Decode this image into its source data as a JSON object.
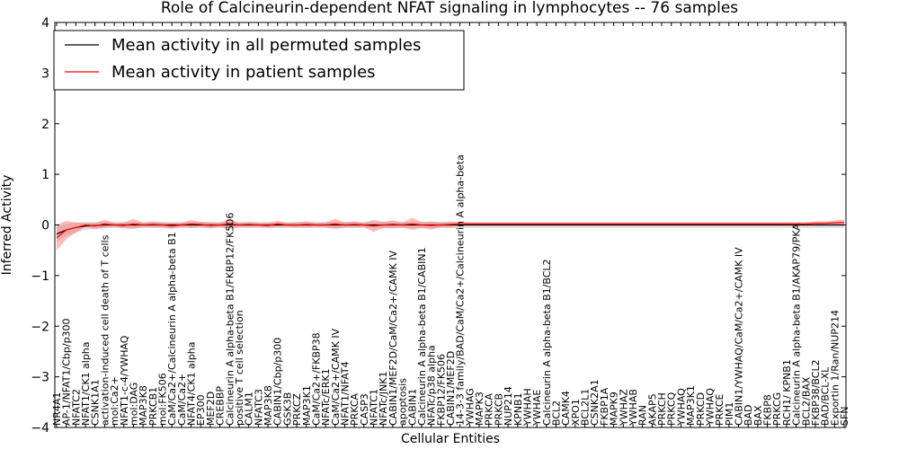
{
  "chart_data": {
    "type": "line",
    "title": "Role of Calcineurin-dependent NFAT signaling in lymphocytes -- 76 samples",
    "xlabel": "Cellular Entities",
    "ylabel": "Inferred Activity",
    "ylim": [
      -4,
      4
    ],
    "yticks": [
      -4,
      -3,
      -2,
      -1,
      0,
      1,
      2,
      3,
      4
    ],
    "grid": false,
    "legend_position": "top-left",
    "categories": [
      "NR4A1",
      "AP-1/NFAT1/Cbp/p300",
      "NFATC2",
      "NFAT1/CK1 alpha",
      "CSNK1A1",
      "activation-induced cell death of T cells",
      "mol:Ca2+",
      "NFAT1-c-4/YWHAQ",
      "mol:DAG",
      "MAP3K8",
      "PRKCB1",
      "mol:FK506",
      "CaM/Ca2+/Calcineurin A alpha-beta B1",
      "CaM/Ca2+",
      "NFAT4/CK1 alpha",
      "EP300",
      "MEF2D",
      "CREBBP",
      "Calcineurin A alpha-beta B1/FKBP12/FK506",
      "positive T cell selection",
      "CALM1",
      "NFATC3",
      "MAP3K8",
      "CABIN1/Cbp/p300",
      "GSK3B",
      "PRKCZ",
      "MAP3K1",
      "CaM/Ca2+/FKBP38",
      "NFATc/ERK1",
      "CaM/Ca2+/CAMK IV",
      "NFAT1/NFAT4",
      "PRKCA",
      "CASP3",
      "NFATC1",
      "NFATc/JNK1",
      "CABIN1/MEF2D/CaM/Ca2+/CAMK IV",
      "apoptosis",
      "CABIN1",
      "Calcineurin A alpha-beta B1/CABIN1",
      "NFATc/p38 alpha",
      "FKBP12/FK506",
      "CABIN1/MEF2D",
      "14-3-3 family/BAD/CaM/Ca2+/Calcineurin A alpha-beta",
      "YWHAG",
      "MAPK3",
      "PRKCA",
      "PRKCB",
      "NUP214",
      "KPNB1",
      "YWHAH",
      "YWHAE",
      "Calcineurin A alpha-beta B1/BCL2",
      "BCL2",
      "CAMK4",
      "XPO1",
      "BCL2L1",
      "CSNK2A1",
      "FKBP1A",
      "MAPK9",
      "YWHAZ",
      "YWHAB",
      "RAN",
      "AKAP5",
      "PRKCH",
      "PRKCQ",
      "YWHAQ",
      "MAP3K1",
      "PRKCD",
      "YWHAQ",
      "PRKCE",
      "PIM1",
      "CABIN1/YWHAQ/CaM/Ca2+/CAMK IV",
      "BAD",
      "BAX",
      "FKBP8",
      "PRKCG",
      "RCH1/ KPNB1",
      "Calcineurin A alpha-beta B1/AKAP79/PKA",
      "BCL2/BAX",
      "FKBP38/BCL2",
      "BAD/BCL-XL",
      "Exportin 1/Ran/NUP214",
      "SFN"
    ],
    "series": [
      {
        "name": "Mean activity in all permuted samples",
        "color": "#000000",
        "values": [
          -0.18,
          -0.1,
          -0.05,
          -0.02,
          -0.01,
          0.0,
          0.0,
          0.0,
          0.0,
          0.0,
          0.0,
          0.0,
          0.0,
          0.0,
          0.0,
          0.0,
          0.0,
          0.0,
          0.0,
          0.0,
          0.0,
          0.0,
          0.0,
          0.0,
          0.0,
          0.0,
          0.0,
          0.0,
          0.0,
          0.0,
          0.0,
          0.0,
          0.0,
          0.0,
          0.0,
          0.0,
          0.0,
          0.0,
          0.0,
          0.0,
          0.0,
          0.0,
          0.0,
          0.0,
          0.0,
          0.0,
          0.0,
          0.0,
          0.0,
          0.0,
          0.0,
          0.0,
          0.0,
          0.0,
          0.0,
          0.0,
          0.0,
          0.0,
          0.0,
          0.0,
          0.0,
          0.0,
          0.0,
          0.0,
          0.0,
          0.0,
          0.0,
          0.0,
          0.0,
          0.0,
          0.0,
          0.0,
          0.0,
          0.0,
          0.0,
          0.0,
          0.0,
          0.0,
          0.0,
          0.0,
          0.0,
          0.0,
          0.0
        ],
        "band": [
          0.15,
          0.12,
          0.1,
          0.08,
          0.07,
          0.06,
          0.06,
          0.06,
          0.06,
          0.06,
          0.06,
          0.06,
          0.06,
          0.06,
          0.06,
          0.06,
          0.06,
          0.06,
          0.06,
          0.06,
          0.06,
          0.06,
          0.06,
          0.06,
          0.06,
          0.06,
          0.06,
          0.06,
          0.06,
          0.06,
          0.06,
          0.06,
          0.06,
          0.06,
          0.06,
          0.06,
          0.06,
          0.06,
          0.06,
          0.06,
          0.06,
          0.06,
          0.06,
          0.06,
          0.06,
          0.06,
          0.06,
          0.06,
          0.06,
          0.06,
          0.06,
          0.06,
          0.06,
          0.06,
          0.06,
          0.06,
          0.06,
          0.06,
          0.06,
          0.06,
          0.06,
          0.06,
          0.06,
          0.06,
          0.06,
          0.06,
          0.06,
          0.06,
          0.06,
          0.06,
          0.06,
          0.06,
          0.06,
          0.06,
          0.06,
          0.06,
          0.06,
          0.06,
          0.06,
          0.06,
          0.06,
          0.06,
          0.06
        ]
      },
      {
        "name": "Mean activity in patient samples",
        "color": "#ff0000",
        "values": [
          -0.25,
          -0.1,
          -0.05,
          0.0,
          -0.02,
          0.02,
          0.0,
          -0.01,
          0.02,
          0.0,
          0.01,
          0.0,
          -0.02,
          0.0,
          0.02,
          0.01,
          -0.01,
          0.0,
          0.02,
          0.0,
          0.01,
          0.0,
          -0.01,
          0.02,
          0.0,
          0.0,
          0.01,
          0.0,
          0.0,
          0.02,
          0.0,
          0.01,
          0.0,
          -0.02,
          0.0,
          0.01,
          0.0,
          0.02,
          0.0,
          -0.01,
          0.0,
          0.01,
          0.02,
          0.02,
          0.02,
          0.02,
          0.02,
          0.02,
          0.02,
          0.02,
          0.02,
          0.02,
          0.02,
          0.02,
          0.02,
          0.02,
          0.02,
          0.02,
          0.02,
          0.02,
          0.02,
          0.02,
          0.02,
          0.02,
          0.02,
          0.02,
          0.02,
          0.02,
          0.02,
          0.02,
          0.02,
          0.02,
          0.02,
          0.02,
          0.02,
          0.02,
          0.02,
          0.02,
          0.02,
          0.03,
          0.03,
          0.04,
          0.05
        ],
        "band": [
          0.25,
          0.18,
          0.1,
          0.04,
          0.06,
          0.08,
          0.04,
          0.06,
          0.1,
          0.04,
          0.06,
          0.05,
          0.06,
          0.04,
          0.08,
          0.05,
          0.06,
          0.04,
          0.1,
          0.04,
          0.05,
          0.04,
          0.05,
          0.06,
          0.04,
          0.05,
          0.06,
          0.04,
          0.05,
          0.1,
          0.05,
          0.06,
          0.04,
          0.12,
          0.06,
          0.08,
          0.05,
          0.12,
          0.06,
          0.08,
          0.05,
          0.06,
          0.04,
          0.03,
          0.03,
          0.03,
          0.03,
          0.03,
          0.03,
          0.03,
          0.03,
          0.03,
          0.03,
          0.03,
          0.03,
          0.03,
          0.03,
          0.03,
          0.03,
          0.03,
          0.03,
          0.03,
          0.03,
          0.03,
          0.03,
          0.03,
          0.03,
          0.03,
          0.03,
          0.03,
          0.03,
          0.03,
          0.03,
          0.03,
          0.03,
          0.03,
          0.03,
          0.03,
          0.03,
          0.04,
          0.04,
          0.05,
          0.06
        ]
      }
    ]
  }
}
